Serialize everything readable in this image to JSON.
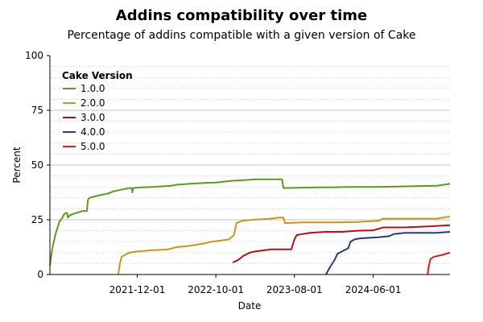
{
  "chart_data": {
    "type": "line",
    "title": "Addins compatibility over time",
    "subtitle": "Percentage of addins compatible with a given version of Cake",
    "xlabel": "Date",
    "ylabel": "Percent",
    "ylim": [
      0,
      100
    ],
    "xlim": [
      "2020-12-28",
      "2025-03-25"
    ],
    "yticks": [
      0,
      25,
      50,
      75,
      100
    ],
    "xticks": [
      {
        "date": "2021-12-01",
        "label": "2021-12-01"
      },
      {
        "date": "2022-10-01",
        "label": "2022-10-01"
      },
      {
        "date": "2023-08-01",
        "label": "2023-08-01"
      },
      {
        "date": "2024-06-01",
        "label": "2024-06-01"
      }
    ],
    "grid": true,
    "legend": {
      "title": "Cake Version",
      "placement": "top-left"
    },
    "series": [
      {
        "name": "1.0.0",
        "color": "#5b9a1f",
        "points": [
          [
            "2020-12-28",
            4
          ],
          [
            "2021-01-05",
            11
          ],
          [
            "2021-01-12",
            15
          ],
          [
            "2021-01-20",
            19
          ],
          [
            "2021-01-28",
            22
          ],
          [
            "2021-02-02",
            24
          ],
          [
            "2021-02-08",
            25
          ],
          [
            "2021-02-15",
            26
          ],
          [
            "2021-02-18",
            27
          ],
          [
            "2021-02-25",
            28
          ],
          [
            "2021-03-05",
            28
          ],
          [
            "2021-03-07",
            26
          ],
          [
            "2021-03-15",
            27
          ],
          [
            "2021-03-25",
            27.5
          ],
          [
            "2021-04-05",
            28
          ],
          [
            "2021-04-20",
            28.5
          ],
          [
            "2021-05-05",
            29
          ],
          [
            "2021-05-20",
            29
          ],
          [
            "2021-05-24",
            34
          ],
          [
            "2021-05-30",
            35
          ],
          [
            "2021-06-15",
            35.5
          ],
          [
            "2021-07-01",
            36
          ],
          [
            "2021-07-20",
            36.5
          ],
          [
            "2021-08-10",
            37
          ],
          [
            "2021-09-01",
            38
          ],
          [
            "2021-09-20",
            38.5
          ],
          [
            "2021-10-10",
            39
          ],
          [
            "2021-11-01",
            39.5
          ],
          [
            "2021-11-10",
            39.5
          ],
          [
            "2021-11-12",
            37.5
          ],
          [
            "2021-11-15",
            39.5
          ],
          [
            "2021-12-15",
            39.8
          ],
          [
            "2022-02-01",
            40
          ],
          [
            "2022-04-10",
            40.5
          ],
          [
            "2022-05-01",
            41
          ],
          [
            "2022-07-01",
            41.5
          ],
          [
            "2022-08-20",
            41.8
          ],
          [
            "2022-10-01",
            42
          ],
          [
            "2022-12-01",
            42.8
          ],
          [
            "2023-02-01",
            43.2
          ],
          [
            "2023-03-01",
            43.5
          ],
          [
            "2023-06-01",
            43.5
          ],
          [
            "2023-06-14",
            43.5
          ],
          [
            "2023-06-20",
            39.5
          ],
          [
            "2023-11-01",
            39.8
          ],
          [
            "2023-12-15",
            39.8
          ],
          [
            "2024-03-01",
            40
          ],
          [
            "2024-06-01",
            40
          ],
          [
            "2024-09-01",
            40.2
          ],
          [
            "2025-02-01",
            40.5
          ],
          [
            "2025-03-15",
            41.2
          ],
          [
            "2025-03-25",
            41.5
          ]
        ]
      },
      {
        "name": "2.0.0",
        "color": "#c8961e",
        "points": [
          [
            "2021-09-18",
            0
          ],
          [
            "2021-09-25",
            5
          ],
          [
            "2021-10-01",
            8
          ],
          [
            "2021-10-15",
            9
          ],
          [
            "2021-11-01",
            10
          ],
          [
            "2021-12-01",
            10.5
          ],
          [
            "2022-01-15",
            11
          ],
          [
            "2022-04-01",
            11.5
          ],
          [
            "2022-05-01",
            12.5
          ],
          [
            "2022-06-15",
            13
          ],
          [
            "2022-08-10",
            14
          ],
          [
            "2022-09-15",
            15
          ],
          [
            "2022-10-20",
            15.5
          ],
          [
            "2022-11-20",
            16
          ],
          [
            "2022-12-10",
            18
          ],
          [
            "2022-12-20",
            23.5
          ],
          [
            "2023-01-10",
            24.5
          ],
          [
            "2023-02-20",
            25
          ],
          [
            "2023-05-01",
            25.5
          ],
          [
            "2023-06-01",
            26
          ],
          [
            "2023-06-20",
            26
          ],
          [
            "2023-06-25",
            23.5
          ],
          [
            "2023-09-01",
            23.8
          ],
          [
            "2024-01-01",
            23.8
          ],
          [
            "2024-04-01",
            24
          ],
          [
            "2024-06-20",
            24.5
          ],
          [
            "2024-07-10",
            25.5
          ],
          [
            "2025-02-01",
            25.5
          ],
          [
            "2025-03-25",
            26.5
          ]
        ]
      },
      {
        "name": "3.0.0",
        "color": "#b01018",
        "points": [
          [
            "2022-12-05",
            5.5
          ],
          [
            "2022-12-25",
            6.5
          ],
          [
            "2023-01-15",
            8.5
          ],
          [
            "2023-02-10",
            10
          ],
          [
            "2023-03-01",
            10.5
          ],
          [
            "2023-04-01",
            11
          ],
          [
            "2023-05-01",
            11.5
          ],
          [
            "2023-06-01",
            11.5
          ],
          [
            "2023-07-20",
            11.5
          ],
          [
            "2023-08-01",
            16
          ],
          [
            "2023-08-10",
            18
          ],
          [
            "2023-09-01",
            18.5
          ],
          [
            "2023-10-01",
            19
          ],
          [
            "2023-12-01",
            19.5
          ],
          [
            "2024-02-01",
            19.5
          ],
          [
            "2024-04-01",
            20
          ],
          [
            "2024-06-01",
            20.2
          ],
          [
            "2024-07-10",
            21.5
          ],
          [
            "2024-10-01",
            21.5
          ],
          [
            "2025-01-01",
            22
          ],
          [
            "2025-03-25",
            22.5
          ]
        ]
      },
      {
        "name": "4.0.0",
        "color": "#1f3f7a",
        "points": [
          [
            "2023-12-01",
            0
          ],
          [
            "2023-12-10",
            2
          ],
          [
            "2023-12-20",
            4
          ],
          [
            "2024-01-05",
            7
          ],
          [
            "2024-01-15",
            9.5
          ],
          [
            "2024-02-01",
            10.5
          ],
          [
            "2024-02-25",
            12
          ],
          [
            "2024-03-05",
            15
          ],
          [
            "2024-03-20",
            16
          ],
          [
            "2024-04-10",
            16.5
          ],
          [
            "2024-06-20",
            17
          ],
          [
            "2024-08-01",
            17.5
          ],
          [
            "2024-08-20",
            18.5
          ],
          [
            "2024-10-01",
            19
          ],
          [
            "2024-12-01",
            19
          ],
          [
            "2025-02-01",
            19
          ],
          [
            "2025-03-25",
            19.5
          ]
        ]
      },
      {
        "name": "5.0.0",
        "color": "#d42020",
        "points": [
          [
            "2024-12-28",
            0
          ],
          [
            "2025-01-02",
            4
          ],
          [
            "2025-01-08",
            7
          ],
          [
            "2025-01-20",
            8
          ],
          [
            "2025-02-05",
            8.5
          ],
          [
            "2025-02-25",
            9
          ],
          [
            "2025-03-25",
            10
          ]
        ]
      }
    ]
  }
}
